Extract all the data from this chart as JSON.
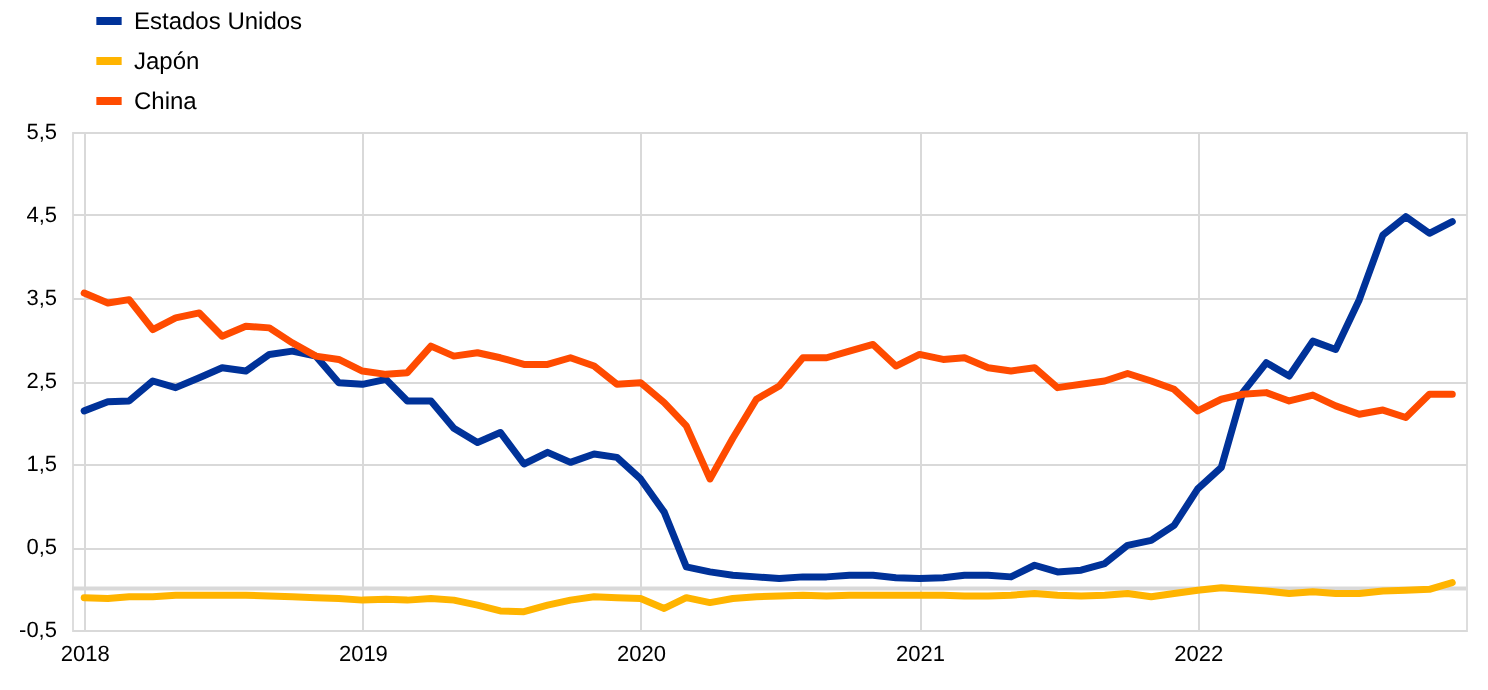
{
  "chart_data": {
    "type": "line",
    "x": [
      "2018-01",
      "2018-02",
      "2018-03",
      "2018-04",
      "2018-05",
      "2018-06",
      "2018-07",
      "2018-08",
      "2018-09",
      "2018-10",
      "2018-11",
      "2018-12",
      "2019-01",
      "2019-02",
      "2019-03",
      "2019-04",
      "2019-05",
      "2019-06",
      "2019-07",
      "2019-08",
      "2019-09",
      "2019-10",
      "2019-11",
      "2019-12",
      "2020-01",
      "2020-02",
      "2020-03",
      "2020-04",
      "2020-05",
      "2020-06",
      "2020-07",
      "2020-08",
      "2020-09",
      "2020-10",
      "2020-11",
      "2020-12",
      "2021-01",
      "2021-02",
      "2021-03",
      "2021-04",
      "2021-05",
      "2021-06",
      "2021-07",
      "2021-08",
      "2021-09",
      "2021-10",
      "2021-11",
      "2021-12",
      "2022-01",
      "2022-02",
      "2022-03",
      "2022-04",
      "2022-05",
      "2022-06",
      "2022-07",
      "2022-08",
      "2022-09",
      "2022-10",
      "2022-11",
      "2022-12"
    ],
    "series": [
      {
        "name": "Estados Unidos",
        "color": "#003299",
        "values": [
          2.14,
          2.25,
          2.26,
          2.5,
          2.42,
          2.54,
          2.66,
          2.62,
          2.82,
          2.86,
          2.8,
          2.48,
          2.46,
          2.52,
          2.26,
          2.26,
          1.93,
          1.76,
          1.88,
          1.5,
          1.64,
          1.52,
          1.62,
          1.58,
          1.32,
          0.92,
          0.26,
          0.2,
          0.16,
          0.14,
          0.12,
          0.14,
          0.14,
          0.16,
          0.16,
          0.13,
          0.12,
          0.13,
          0.16,
          0.16,
          0.14,
          0.28,
          0.2,
          0.22,
          0.3,
          0.52,
          0.58,
          0.76,
          1.2,
          1.46,
          2.36,
          2.72,
          2.56,
          2.98,
          2.88,
          3.48,
          4.26,
          4.48,
          4.28,
          4.42
        ]
      },
      {
        "name": "Japón",
        "color": "#ffb400",
        "values": [
          -0.11,
          -0.12,
          -0.1,
          -0.1,
          -0.08,
          -0.08,
          -0.08,
          -0.08,
          -0.09,
          -0.1,
          -0.11,
          -0.12,
          -0.14,
          -0.13,
          -0.14,
          -0.12,
          -0.14,
          -0.2,
          -0.27,
          -0.28,
          -0.2,
          -0.14,
          -0.1,
          -0.11,
          -0.12,
          -0.24,
          -0.11,
          -0.17,
          -0.12,
          -0.1,
          -0.09,
          -0.08,
          -0.09,
          -0.08,
          -0.08,
          -0.08,
          -0.08,
          -0.08,
          -0.09,
          -0.09,
          -0.08,
          -0.06,
          -0.08,
          -0.09,
          -0.08,
          -0.06,
          -0.1,
          -0.06,
          -0.02,
          0.01,
          -0.01,
          -0.03,
          -0.06,
          -0.04,
          -0.06,
          -0.06,
          -0.03,
          -0.02,
          -0.01,
          0.07
        ]
      },
      {
        "name": "China",
        "color": "#ff4b00",
        "values": [
          3.56,
          3.44,
          3.48,
          3.12,
          3.26,
          3.32,
          3.04,
          3.16,
          3.14,
          2.96,
          2.8,
          2.76,
          2.62,
          2.58,
          2.6,
          2.92,
          2.8,
          2.84,
          2.78,
          2.7,
          2.7,
          2.78,
          2.68,
          2.46,
          2.48,
          2.24,
          1.96,
          1.32,
          1.81,
          2.28,
          2.44,
          2.78,
          2.78,
          2.86,
          2.94,
          2.68,
          2.82,
          2.76,
          2.78,
          2.66,
          2.62,
          2.66,
          2.42,
          2.46,
          2.5,
          2.59,
          2.5,
          2.4,
          2.14,
          2.28,
          2.34,
          2.36,
          2.26,
          2.33,
          2.2,
          2.1,
          2.15,
          2.06,
          2.34,
          2.34
        ]
      }
    ],
    "xlim": [
      "2017-12-16",
      "2022-12-19"
    ],
    "xticks": [
      "2018",
      "2019",
      "2020",
      "2021",
      "2022"
    ],
    "ylim": [
      -0.5,
      5.5
    ],
    "yticks": [
      {
        "value": -0.5,
        "label": "-0,5"
      },
      {
        "value": 0.5,
        "label": "0,5"
      },
      {
        "value": 1.5,
        "label": "1,5"
      },
      {
        "value": 2.5,
        "label": "2,5"
      },
      {
        "value": 3.5,
        "label": "3,5"
      },
      {
        "value": 4.5,
        "label": "4,5"
      },
      {
        "value": 5.5,
        "label": "5,5"
      }
    ],
    "ref_lines": [
      {
        "axis": "y",
        "value": 0,
        "color": "#d9d9d9"
      }
    ],
    "grid": true,
    "legend": "top left",
    "marker": "none",
    "line_style": "solid"
  }
}
